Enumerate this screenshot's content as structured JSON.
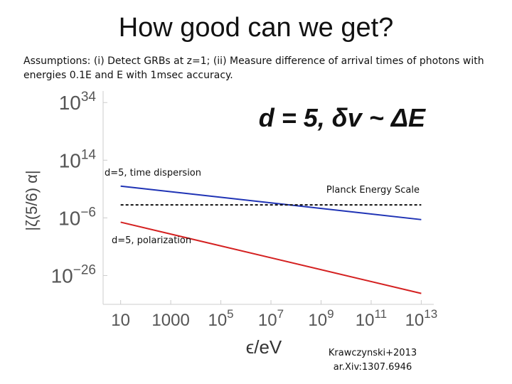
{
  "slide": {
    "title": "How good can we get?",
    "assumptions": "Assumptions: (i) Detect GRBs at z=1; (ii) Measure difference of arrival times of photons with energies 0.1E and E with 1msec accuracy."
  },
  "credit": {
    "line1": "Krawczynski+2013",
    "line2": "ar.Xiv:1307.6946"
  },
  "colors": {
    "time_dispersion": "#1f33b5",
    "polarization": "#d42020",
    "planck": "#111111",
    "axis": "#cccccc",
    "tick_text": "#555555"
  },
  "chart_data": {
    "type": "line",
    "xscale": "log",
    "yscale": "log",
    "xlim_log10": [
      0.3,
      13.5
    ],
    "ylim_log10": [
      -36,
      38
    ],
    "xlabel": "ϵ/eV",
    "ylabel": "|ζ(5/6) α|",
    "inset_label": "d = 5, δv ~ ΔE",
    "x_ticks": [
      {
        "base": "10",
        "exp": "",
        "x_log10": 1
      },
      {
        "base": "1000",
        "exp": "",
        "x_log10": 3
      },
      {
        "base": "10",
        "exp": "5",
        "x_log10": 5
      },
      {
        "base": "10",
        "exp": "7",
        "x_log10": 7
      },
      {
        "base": "10",
        "exp": "9",
        "x_log10": 9
      },
      {
        "base": "10",
        "exp": "11",
        "x_log10": 11
      },
      {
        "base": "10",
        "exp": "13",
        "x_log10": 13
      }
    ],
    "y_ticks": [
      {
        "base": "10",
        "exp": "34",
        "y_log10": 34
      },
      {
        "base": "10",
        "exp": "14",
        "y_log10": 14
      },
      {
        "base": "10",
        "exp": "−6",
        "y_log10": -6
      },
      {
        "base": "10",
        "exp": "−26",
        "y_log10": -26
      }
    ],
    "series": [
      {
        "name": "d=5, time dispersion",
        "x_log10": [
          1,
          13
        ],
        "y_log10": [
          5.0,
          -6.6
        ],
        "style": "solid",
        "color_key": "time_dispersion"
      },
      {
        "name": "Planck Energy Scale",
        "x_log10": [
          1,
          13
        ],
        "y_log10": [
          -1.5,
          -1.5
        ],
        "style": "dashed",
        "color_key": "planck"
      },
      {
        "name": "d=5, polarization",
        "x_log10": [
          1,
          13
        ],
        "y_log10": [
          -7.5,
          -32.2
        ],
        "style": "solid",
        "color_key": "polarization"
      }
    ],
    "labels": [
      {
        "text": "d=5, time dispersion",
        "series": 0
      },
      {
        "text": "Planck Energy Scale",
        "series": 1
      },
      {
        "text": "d=5, polarization",
        "series": 2
      }
    ]
  }
}
